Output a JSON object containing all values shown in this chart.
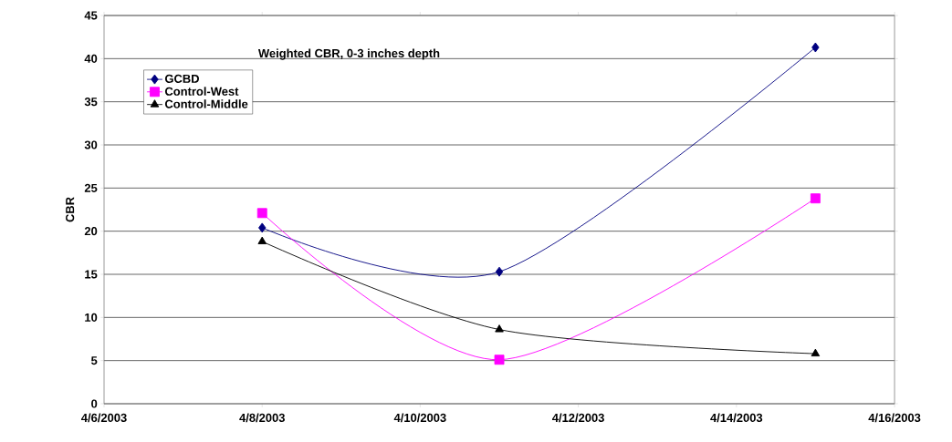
{
  "chart_data": {
    "type": "line",
    "title": "Weighted CBR, 0-3 inches depth",
    "ylabel": "CBR",
    "x": [
      "2003-04-08",
      "2003-04-11",
      "2003-04-15"
    ],
    "series": [
      {
        "name": "GCBD",
        "color": "#000080",
        "marker": "diamond",
        "values": [
          20.4,
          15.3,
          41.3
        ]
      },
      {
        "name": "Control-West",
        "color": "#ff00ff",
        "marker": "square",
        "values": [
          22.1,
          5.1,
          23.8
        ]
      },
      {
        "name": "Control-Middle",
        "color": "#000000",
        "marker": "triangle",
        "values": [
          18.8,
          8.6,
          5.8
        ]
      }
    ],
    "xlim": [
      "2003-04-06",
      "2003-04-16"
    ],
    "xticks": [
      {
        "value": "2003-04-06",
        "label": "4/6/2003"
      },
      {
        "value": "2003-04-08",
        "label": "4/8/2003"
      },
      {
        "value": "2003-04-10",
        "label": "4/10/2003"
      },
      {
        "value": "2003-04-12",
        "label": "4/12/2003"
      },
      {
        "value": "2003-04-14",
        "label": "4/14/2003"
      },
      {
        "value": "2003-04-16",
        "label": "4/16/2003"
      }
    ],
    "ylim": [
      0,
      45
    ],
    "yticks": [
      0,
      5,
      10,
      15,
      20,
      25,
      30,
      35,
      40,
      45
    ],
    "grid": "y",
    "legend": "top left",
    "line_style": "solid"
  }
}
